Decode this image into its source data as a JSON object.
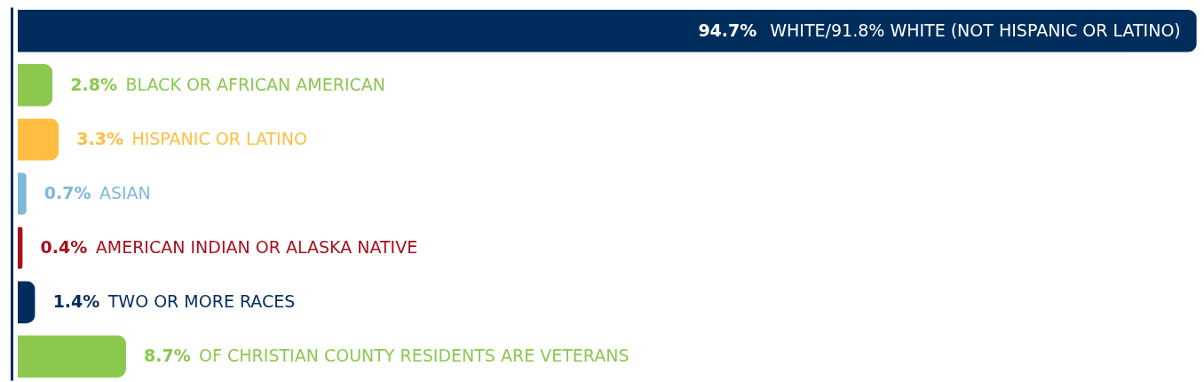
{
  "chart_data": {
    "type": "bar",
    "orientation": "horizontal",
    "categories": [
      "WHITE/91.8% WHITE (NOT HISPANIC OR LATINO)",
      "BLACK OR AFRICAN AMERICAN",
      "HISPANIC OR LATINO",
      "ASIAN",
      "AMERICAN INDIAN OR ALASKA NATIVE",
      "TWO OR MORE RACES",
      "OF CHRISTIAN  COUNTY RESIDENTS ARE VETERANS"
    ],
    "values": [
      94.7,
      2.8,
      3.3,
      0.7,
      0.4,
      1.4,
      8.7
    ],
    "colors": [
      "#002d5c",
      "#8bc84e",
      "#ffbe42",
      "#7db9d8",
      "#a8101d",
      "#002d5c",
      "#8bc84e"
    ],
    "value_labels": [
      "94.7%",
      "2.8%",
      "3.3%",
      "0.7%",
      "0.4%",
      "1.4%",
      "8.7%"
    ],
    "xlim": [
      0,
      95
    ],
    "tick_labels": false
  }
}
